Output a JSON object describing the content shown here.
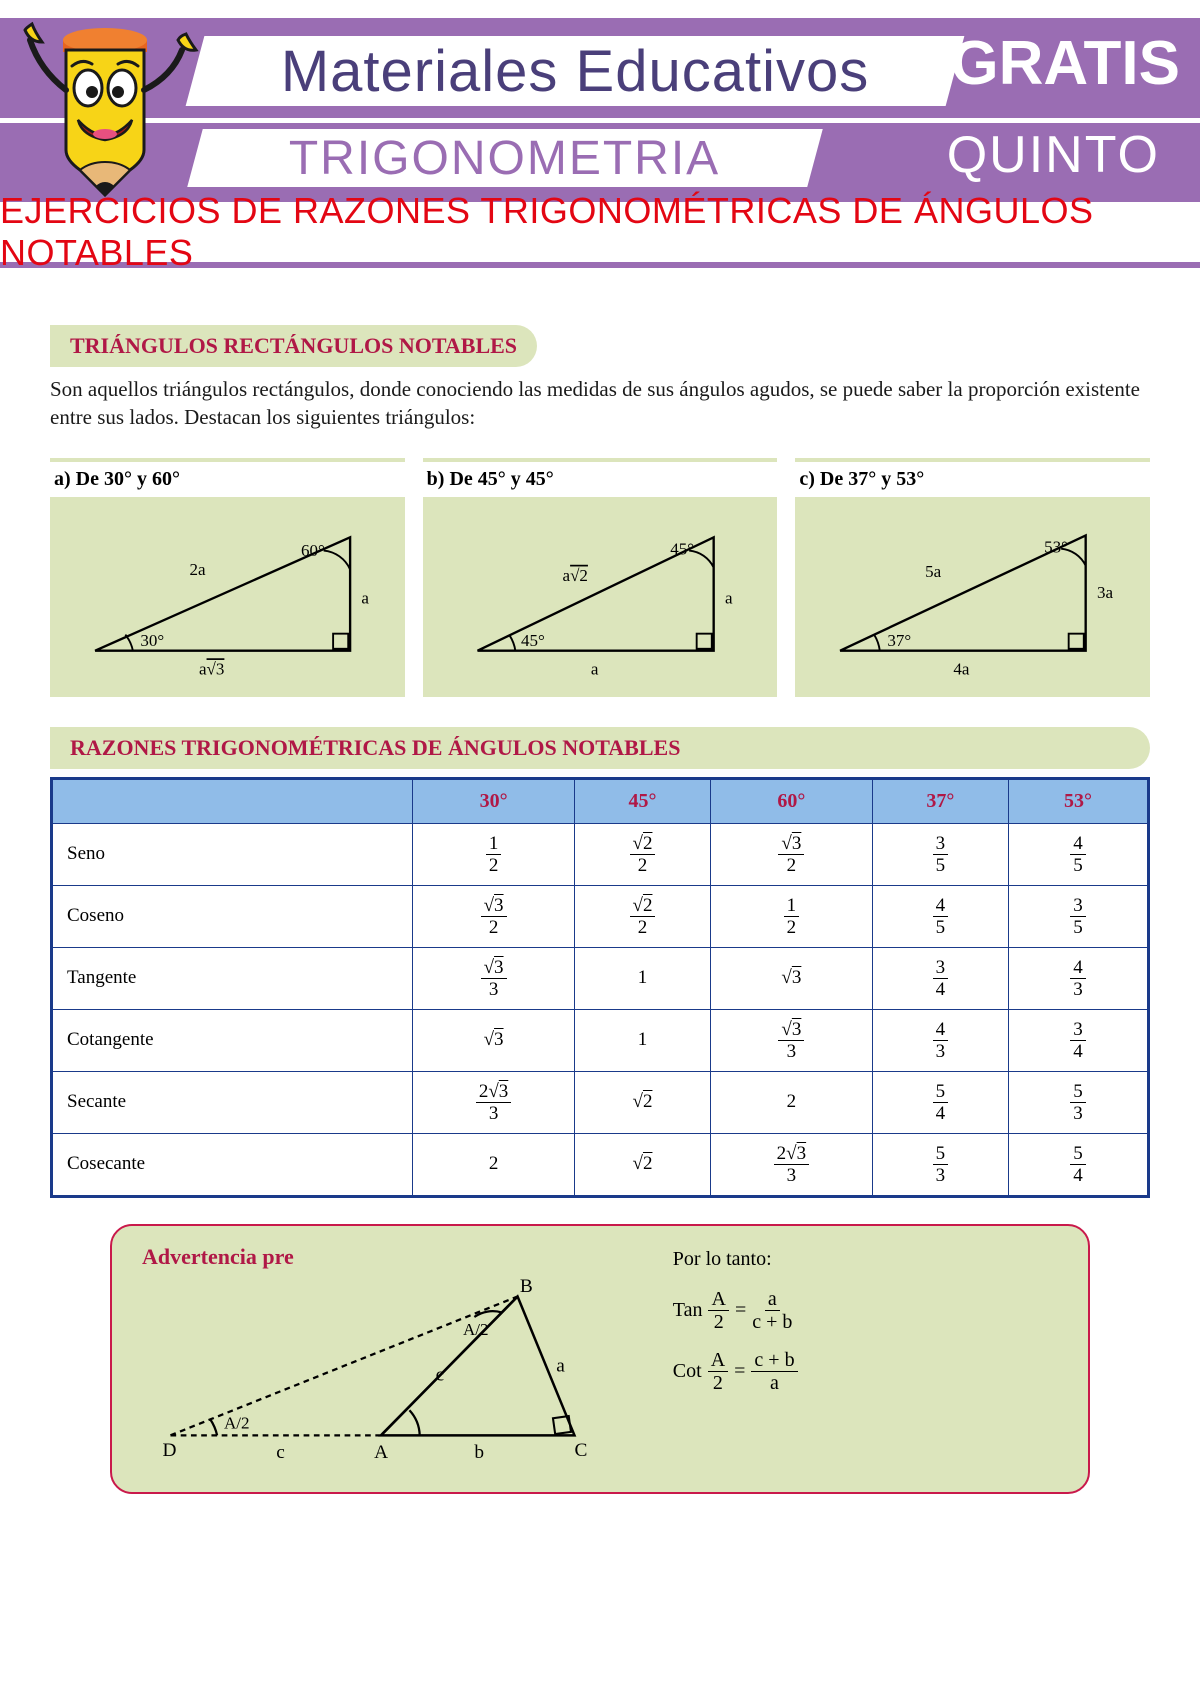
{
  "header": {
    "brand": "Materiales Educativos",
    "gratis": "GRATIS",
    "subject": "TRIGONOMETRIA",
    "grade": "QUINTO",
    "title": "EJERCICIOS DE RAZONES TRIGONOMÉTRICAS DE ÁNGULOS NOTABLES"
  },
  "section1": {
    "heading": "TRIÁNGULOS RECTÁNGULOS NOTABLES",
    "intro": "Son aquellos triángulos rectángulos, donde conociendo las medidas de sus ángulos agudos, se puede saber la proporción existente entre sus lados. Destacan los siguientes triángulos:"
  },
  "triangles": [
    {
      "label": "a)   De 30° y 60°",
      "angle_bl": "30°",
      "angle_tr": "60°",
      "hyp": "2a",
      "opp": "a",
      "adj": "a√3"
    },
    {
      "label": "b)   De 45° y 45°",
      "angle_bl": "45°",
      "angle_tr": "45°",
      "hyp": "a√2",
      "opp": "a",
      "adj": "a"
    },
    {
      "label": "c)   De 37° y 53°",
      "angle_bl": "37°",
      "angle_tr": "53°",
      "hyp": "5a",
      "opp": "3a",
      "adj": "4a"
    }
  ],
  "section2": {
    "heading": "RAZONES TRIGONOMÉTRICAS DE ÁNGULOS NOTABLES"
  },
  "table": {
    "headers": [
      "",
      "30°",
      "45°",
      "60°",
      "37°",
      "53°"
    ],
    "rows": [
      {
        "name": "Seno",
        "cells": [
          {
            "n": "1",
            "d": "2"
          },
          {
            "n": "√2",
            "d": "2"
          },
          {
            "n": "√3",
            "d": "2"
          },
          {
            "n": "3",
            "d": "5"
          },
          {
            "n": "4",
            "d": "5"
          }
        ]
      },
      {
        "name": "Coseno",
        "cells": [
          {
            "n": "√3",
            "d": "2"
          },
          {
            "n": "√2",
            "d": "2"
          },
          {
            "n": "1",
            "d": "2"
          },
          {
            "n": "4",
            "d": "5"
          },
          {
            "n": "3",
            "d": "5"
          }
        ]
      },
      {
        "name": "Tangente",
        "cells": [
          {
            "n": "√3",
            "d": "3"
          },
          {
            "plain": "1"
          },
          {
            "plain": "√3"
          },
          {
            "n": "3",
            "d": "4"
          },
          {
            "n": "4",
            "d": "3"
          }
        ]
      },
      {
        "name": "Cotangente",
        "cells": [
          {
            "plain": "√3"
          },
          {
            "plain": "1"
          },
          {
            "n": "√3",
            "d": "3"
          },
          {
            "n": "4",
            "d": "3"
          },
          {
            "n": "3",
            "d": "4"
          }
        ]
      },
      {
        "name": "Secante",
        "cells": [
          {
            "n": "2√3",
            "d": "3"
          },
          {
            "plain": "√2"
          },
          {
            "plain": "2"
          },
          {
            "n": "5",
            "d": "4"
          },
          {
            "n": "5",
            "d": "3"
          }
        ]
      },
      {
        "name": "Cosecante",
        "cells": [
          {
            "plain": "2"
          },
          {
            "plain": "√2"
          },
          {
            "n": "2√3",
            "d": "3"
          },
          {
            "n": "5",
            "d": "3"
          },
          {
            "n": "5",
            "d": "4"
          }
        ]
      }
    ]
  },
  "warning": {
    "title": "Advertencia pre",
    "therefore": "Por lo tanto:",
    "eq1_lhs": "Tan",
    "eq1_frac_n": "A",
    "eq1_frac_d": "2",
    "eq1_rhs_n": "a",
    "eq1_rhs_d": "c + b",
    "eq2_lhs": "Cot",
    "eq2_frac_n": "A",
    "eq2_frac_d": "2",
    "eq2_rhs_n": "c + b",
    "eq2_rhs_d": "a",
    "fig": {
      "pts": {
        "D": "D",
        "A": "A",
        "B": "B",
        "C": "C"
      },
      "half": "A/2",
      "c": "c",
      "b": "b",
      "a": "a"
    }
  },
  "colors": {
    "purple": "#9a6db3",
    "darkpurple": "#4a3f7a",
    "red": "#e30613",
    "maroon": "#b01846",
    "olive": "#dce5bc",
    "blueborder": "#1a3a8a",
    "bluehead": "#90bce8"
  }
}
